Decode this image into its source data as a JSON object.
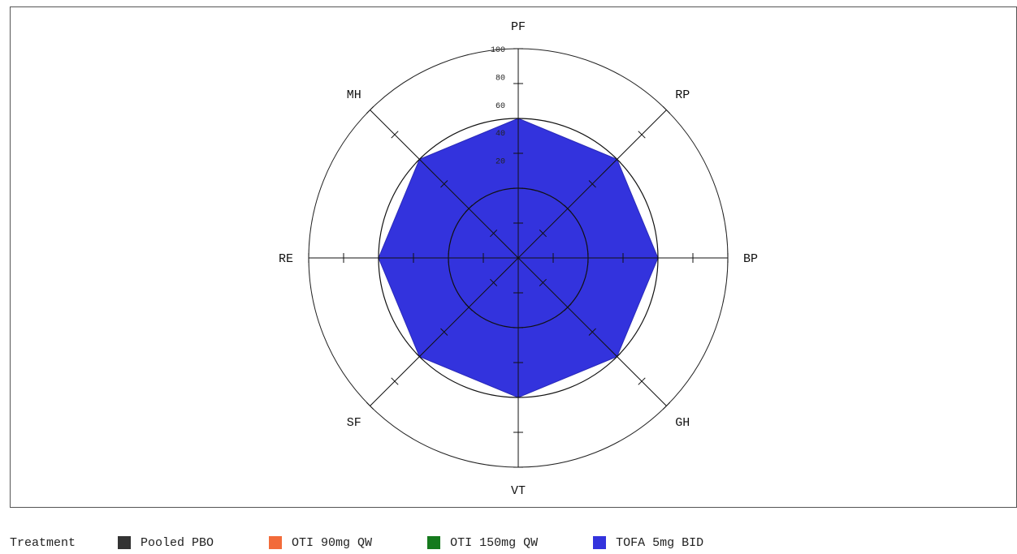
{
  "chart_data": {
    "type": "radar",
    "title": "",
    "axes": [
      "PF",
      "RP",
      "BP",
      "GH",
      "VT",
      "SF",
      "RE",
      "MH"
    ],
    "r_ticks": [
      20,
      40,
      60,
      80,
      100
    ],
    "r_range": [
      -50,
      100
    ],
    "series": [
      {
        "name": "TOFA 5mg BID",
        "values": [
          50,
          50,
          50,
          50,
          50,
          50,
          50,
          50
        ]
      }
    ]
  },
  "legend": {
    "title": "Treatment",
    "entries": [
      {
        "label": "Pooled PBO",
        "color": "#333333"
      },
      {
        "label": "OTI 90mg QW",
        "color": "#f26b3a"
      },
      {
        "label": "OTI 150mg QW",
        "color": "#157a1d"
      },
      {
        "label": "TOFA 5mg BID",
        "color": "#3333dd"
      }
    ]
  }
}
